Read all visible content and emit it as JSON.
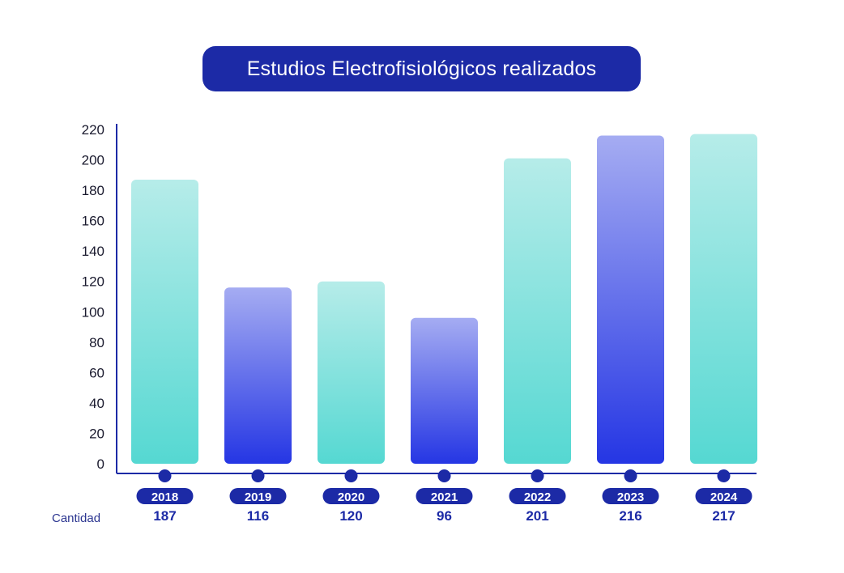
{
  "title": "Estudios Electrofisiológicos realizados",
  "row_label": "Cantidad",
  "colors": {
    "primary": "#1c2aa6",
    "teal_top": "#b6ece9",
    "teal_bottom": "#55d8d2",
    "blue_top": "#a5acf2",
    "blue_bottom": "#2536e4"
  },
  "chart_data": {
    "type": "bar",
    "title": "Estudios Electrofisiológicos realizados",
    "xlabel": "",
    "ylabel": "",
    "ylim": [
      0,
      220
    ],
    "yticks": [
      0,
      20,
      40,
      60,
      80,
      100,
      120,
      140,
      160,
      180,
      200,
      220
    ],
    "categories": [
      "2018",
      "2019",
      "2020",
      "2021",
      "2022",
      "2023",
      "2024"
    ],
    "values": [
      187,
      116,
      120,
      96,
      201,
      216,
      217
    ],
    "value_labels": [
      "187",
      "116",
      "120",
      "96",
      "201",
      "216",
      "217"
    ],
    "bar_styles": [
      "teal",
      "blue",
      "teal",
      "blue",
      "teal",
      "blue",
      "teal"
    ],
    "grid": false
  }
}
